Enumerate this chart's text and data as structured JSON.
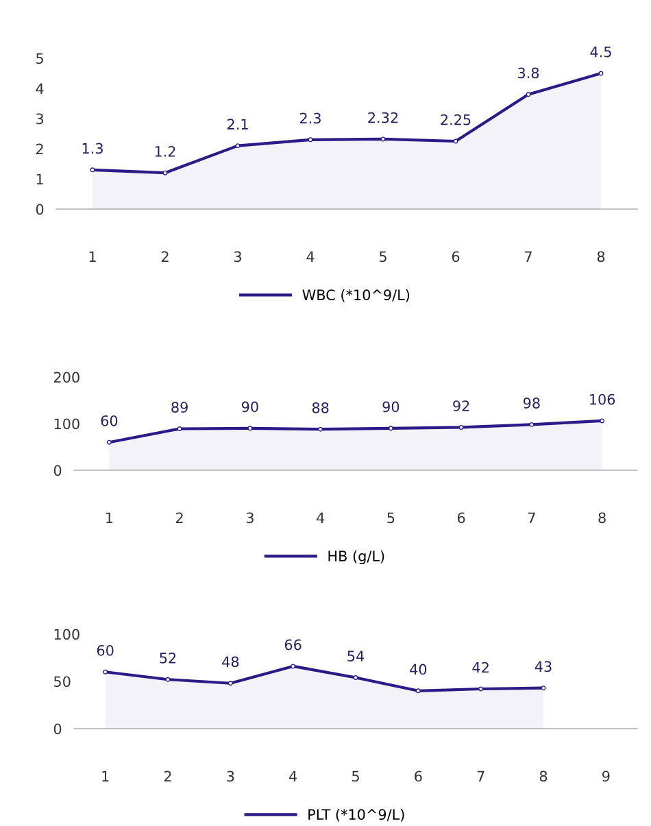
{
  "chart_data": [
    {
      "type": "area",
      "categories": [
        "1",
        "2",
        "3",
        "4",
        "5",
        "6",
        "7",
        "8"
      ],
      "series": [
        {
          "name": "WBC (*10^9/L)",
          "color": "#2e1a87",
          "values": [
            1.3,
            1.2,
            2.1,
            2.3,
            2.32,
            2.25,
            3.8,
            4.5
          ]
        }
      ],
      "ylim": [
        0,
        5
      ],
      "yticks": [
        0,
        1,
        2,
        3,
        4,
        5
      ],
      "data_labels": true,
      "marker": "circle",
      "legend": "bottom",
      "grid": false
    },
    {
      "type": "area",
      "categories": [
        "1",
        "2",
        "3",
        "4",
        "5",
        "6",
        "7",
        "8"
      ],
      "series": [
        {
          "name": "HB (g/L)",
          "color": "#2e1a87",
          "values": [
            60,
            89,
            90,
            88,
            90,
            92,
            98,
            106
          ]
        }
      ],
      "ylim": [
        0,
        200
      ],
      "yticks": [
        0,
        100,
        200
      ],
      "data_labels": true,
      "marker": "circle",
      "legend": "bottom",
      "grid": false
    },
    {
      "type": "area",
      "categories": [
        "1",
        "2",
        "3",
        "4",
        "5",
        "6",
        "7",
        "8",
        "9"
      ],
      "series": [
        {
          "name": "PLT (*10^9/L)",
          "color": "#2e1a87",
          "values": [
            60,
            52,
            48,
            66,
            54,
            40,
            42,
            43,
            null
          ]
        }
      ],
      "ylim": [
        0,
        100
      ],
      "yticks": [
        0,
        50,
        100
      ],
      "data_labels": true,
      "marker": "circle",
      "legend": "bottom",
      "grid": false
    }
  ]
}
